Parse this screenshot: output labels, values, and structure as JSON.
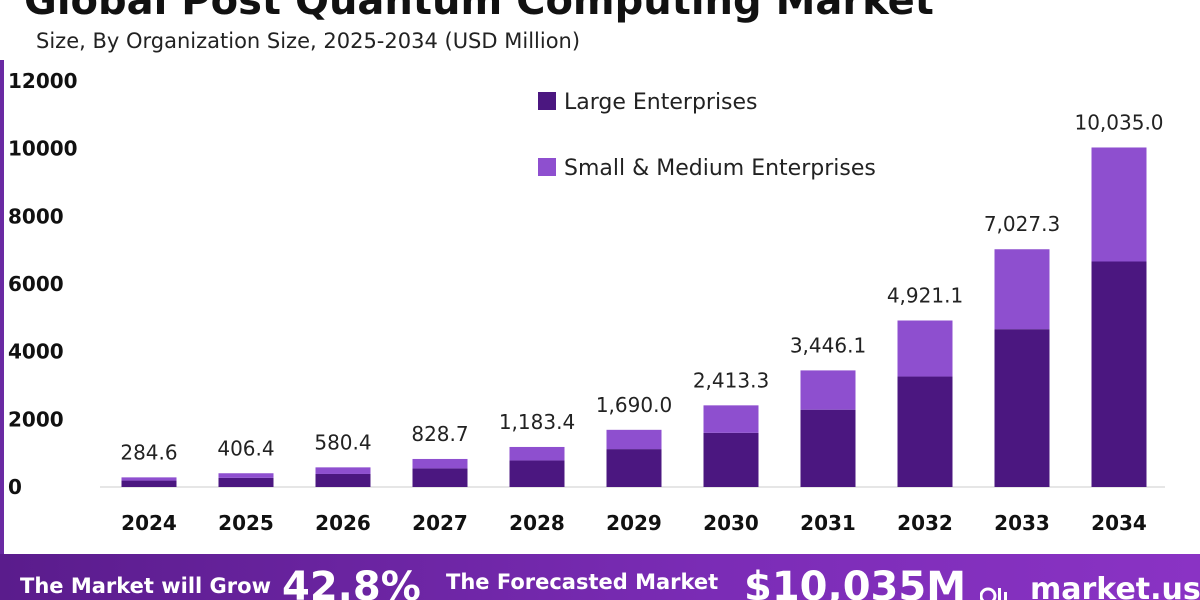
{
  "header": {
    "title": "Global Post Quantum Computing Market",
    "subtitle": "Size, By Organization Size, 2025-2034 (USD Million)"
  },
  "chart_data": {
    "type": "bar",
    "stacked": true,
    "categories": [
      "2024",
      "2025",
      "2026",
      "2027",
      "2028",
      "2029",
      "2030",
      "2031",
      "2032",
      "2033",
      "2034"
    ],
    "series": [
      {
        "name": "Large Enterprises",
        "color": "#4b1780",
        "values": [
          190,
          270,
          385,
          550,
          785,
          1120,
          1600,
          2285,
          3265,
          4665,
          6665
        ]
      },
      {
        "name": "Small & Medium Enterprises",
        "color": "#8e4fcf",
        "values": [
          94.6,
          136.4,
          195.4,
          278.7,
          398.4,
          570.0,
          813.3,
          1161.1,
          1656.1,
          2362.3,
          3370.0
        ]
      }
    ],
    "totals": [
      "284.6",
      "406.4",
      "580.4",
      "828.7",
      "1,183.4",
      "1,690.0",
      "2,413.3",
      "3,446.1",
      "4,921.1",
      "7,027.3",
      "10,035.0"
    ],
    "y_ticks": [
      "0",
      "2000",
      "4000",
      "6000",
      "8000",
      "10000",
      "12000"
    ],
    "ylim": [
      0,
      12000
    ],
    "legend_position": "top-right",
    "grid": false
  },
  "footer": {
    "grow_label": "The Market will Grow",
    "cagr_value": "42.8%",
    "forecast_label": "The Forecasted Market",
    "forecast_value": "$10,035M",
    "brand": "market.us"
  }
}
